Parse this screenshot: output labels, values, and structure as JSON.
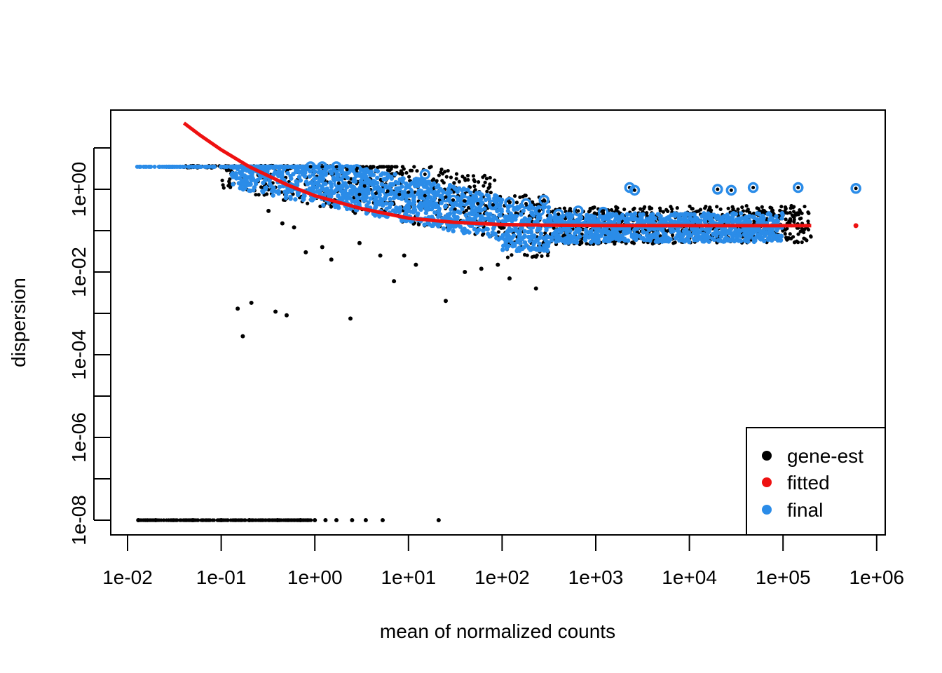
{
  "chart_data": {
    "type": "scatter",
    "title": "",
    "xlabel": "mean of normalized counts",
    "ylabel": "dispersion",
    "x_scale": "log10",
    "y_scale": "log10",
    "xlim": [
      0.008,
      1200000.0
    ],
    "ylim": [
      3.5e-09,
      45
    ],
    "x_ticks": [
      {
        "value": 0.01,
        "label": "1e-02"
      },
      {
        "value": 0.1,
        "label": "1e-01"
      },
      {
        "value": 1,
        "label": "1e+00"
      },
      {
        "value": 10,
        "label": "1e+01"
      },
      {
        "value": 100,
        "label": "1e+02"
      },
      {
        "value": 1000,
        "label": "1e+03"
      },
      {
        "value": 10000,
        "label": "1e+04"
      },
      {
        "value": 100000,
        "label": "1e+05"
      },
      {
        "value": 1000000,
        "label": "1e+06"
      }
    ],
    "y_ticks": [
      {
        "value": 1e-08,
        "label": "1e-08"
      },
      {
        "value": 1e-07,
        "label": ""
      },
      {
        "value": 1e-06,
        "label": "1e-06"
      },
      {
        "value": 1e-05,
        "label": ""
      },
      {
        "value": 0.0001,
        "label": "1e-04"
      },
      {
        "value": 0.001,
        "label": ""
      },
      {
        "value": 0.01,
        "label": "1e-02"
      },
      {
        "value": 0.1,
        "label": ""
      },
      {
        "value": 1,
        "label": "1e+00"
      },
      {
        "value": 10,
        "label": ""
      }
    ],
    "legend": {
      "position": "bottom-right",
      "entries": [
        {
          "name": "gene-est",
          "color": "#000000"
        },
        {
          "name": "fitted",
          "color": "#ee1111"
        },
        {
          "name": "final",
          "color": "#2b8ce8"
        }
      ]
    },
    "series": [
      {
        "name": "gene-est",
        "color": "#000000",
        "points": [
          [
            0.15,
            0.0013
          ],
          [
            0.21,
            0.0018
          ],
          [
            0.17,
            0.00028
          ],
          [
            0.38,
            0.0011
          ],
          [
            0.5,
            0.0009
          ],
          [
            2.4,
            0.00075
          ],
          [
            25,
            0.002
          ],
          [
            7,
            0.006
          ],
          [
            0.8,
            0.03
          ],
          [
            1.2,
            0.04
          ],
          [
            0.32,
            0.3
          ],
          [
            0.45,
            0.15
          ],
          [
            1.5,
            0.02
          ],
          [
            3,
            0.05
          ],
          [
            12,
            0.015
          ],
          [
            40,
            0.01
          ],
          [
            230,
            0.004
          ],
          [
            120,
            0.007
          ],
          [
            60,
            0.012
          ],
          [
            5,
            0.025
          ],
          [
            0.6,
            0.12
          ],
          [
            9,
            0.025
          ],
          [
            90,
            0.015
          ],
          [
            0.013,
            1e-08
          ],
          [
            0.02,
            1e-08
          ],
          [
            0.05,
            1e-08
          ],
          [
            0.1,
            1e-08
          ],
          [
            0.2,
            1e-08
          ],
          [
            0.4,
            1e-08
          ],
          [
            0.7,
            1e-08
          ],
          [
            1.0,
            1e-08
          ],
          [
            1.3,
            1e-08
          ],
          [
            1.7,
            1e-08
          ],
          [
            2.5,
            1e-08
          ],
          [
            3.5,
            1e-08
          ],
          [
            5.3,
            1e-08
          ],
          [
            21,
            1e-08
          ]
        ]
      },
      {
        "name": "final",
        "color": "#2b8ce8",
        "outliers": [
          [
            0.9,
            3.5
          ],
          [
            1.2,
            3.5
          ],
          [
            1.7,
            3.5
          ],
          [
            2.2,
            3.0
          ],
          [
            2.8,
            3.0
          ],
          [
            1.8,
            1.4
          ],
          [
            3.4,
            1.2
          ],
          [
            15,
            2.3
          ],
          [
            4.5,
            0.8
          ],
          [
            6,
            0.9
          ],
          [
            10,
            0.85
          ],
          [
            15,
            0.7
          ],
          [
            25,
            0.65
          ],
          [
            30,
            0.55
          ],
          [
            40,
            0.52
          ],
          [
            55,
            0.45
          ],
          [
            80,
            0.42
          ],
          [
            120,
            0.48
          ],
          [
            180,
            0.45
          ],
          [
            250,
            0.3
          ],
          [
            400,
            0.25
          ],
          [
            650,
            0.3
          ],
          [
            2300,
            1.1
          ],
          [
            2600,
            0.95
          ],
          [
            20000,
            1.0
          ],
          [
            28000,
            0.95
          ],
          [
            48000,
            1.1
          ],
          [
            145000,
            1.1
          ],
          [
            600000,
            1.05
          ],
          [
            8,
            0.75
          ],
          [
            3,
            0.75
          ],
          [
            280,
            0.55
          ],
          [
            1200,
            0.28
          ]
        ]
      }
    ],
    "fitted_curve": [
      [
        0.04,
        40
      ],
      [
        0.06,
        20
      ],
      [
        0.1,
        9
      ],
      [
        0.2,
        3.5
      ],
      [
        0.5,
        1.3
      ],
      [
        1,
        0.7
      ],
      [
        3,
        0.35
      ],
      [
        10,
        0.2
      ],
      [
        30,
        0.16
      ],
      [
        100,
        0.14
      ],
      [
        300,
        0.135
      ],
      [
        1000,
        0.133
      ],
      [
        10000,
        0.132
      ],
      [
        100000,
        0.132
      ],
      [
        200000,
        0.132
      ]
    ]
  }
}
